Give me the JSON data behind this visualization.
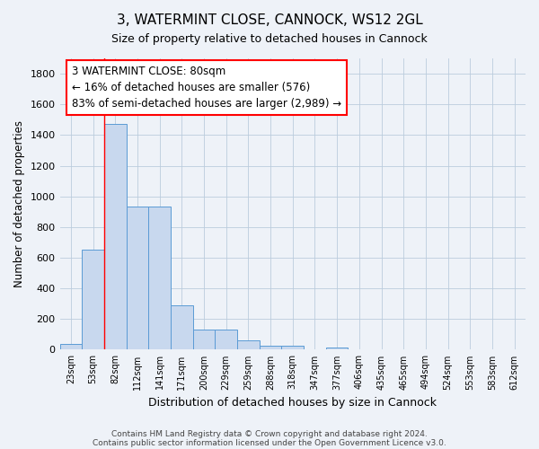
{
  "title": "3, WATERMINT CLOSE, CANNOCK, WS12 2GL",
  "subtitle": "Size of property relative to detached houses in Cannock",
  "xlabel": "Distribution of detached houses by size in Cannock",
  "ylabel": "Number of detached properties",
  "footnote1": "Contains HM Land Registry data © Crown copyright and database right 2024.",
  "footnote2": "Contains public sector information licensed under the Open Government Licence v3.0.",
  "bar_labels": [
    "23sqm",
    "53sqm",
    "82sqm",
    "112sqm",
    "141sqm",
    "171sqm",
    "200sqm",
    "229sqm",
    "259sqm",
    "288sqm",
    "318sqm",
    "347sqm",
    "377sqm",
    "406sqm",
    "435sqm",
    "465sqm",
    "494sqm",
    "524sqm",
    "553sqm",
    "583sqm",
    "612sqm"
  ],
  "bar_values": [
    40,
    650,
    1470,
    935,
    935,
    290,
    130,
    130,
    60,
    25,
    25,
    0,
    15,
    0,
    0,
    0,
    0,
    0,
    0,
    0,
    0
  ],
  "bar_color": "#c8d8ee",
  "bar_edge_color": "#5b9bd5",
  "grid_color": "#bbccdd",
  "background_color": "#eef2f8",
  "red_line_x": 1.5,
  "annotation_text": "3 WATERMINT CLOSE: 80sqm\n← 16% of detached houses are smaller (576)\n83% of semi-detached houses are larger (2,989) →",
  "ylim": [
    0,
    1900
  ],
  "yticks": [
    0,
    200,
    400,
    600,
    800,
    1000,
    1200,
    1400,
    1600,
    1800
  ],
  "figsize": [
    6.0,
    5.0
  ],
  "dpi": 100
}
